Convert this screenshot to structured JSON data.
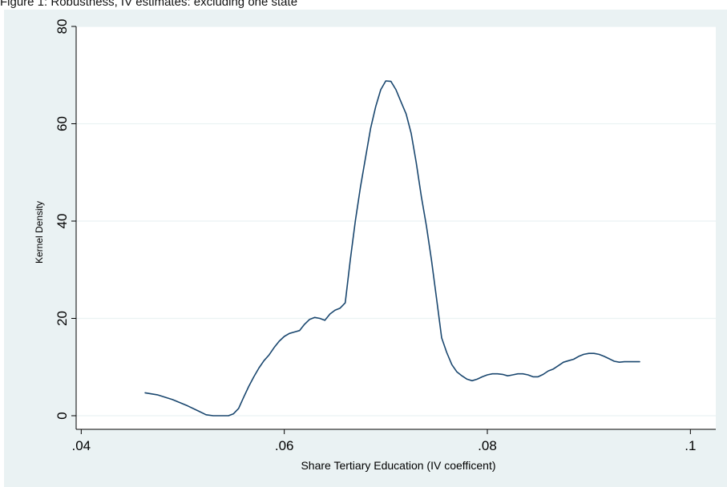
{
  "figure": {
    "caption": "Figure 1: Robustness, IV estimates: excluding one state"
  },
  "chart_data": {
    "type": "line",
    "xlabel": "Share Tertiary Education (IV coefficent)",
    "ylabel": "Kernel Density",
    "xlim": [
      0.0395,
      0.1025
    ],
    "ylim": [
      -2.8,
      80
    ],
    "xticks": [
      {
        "value": 0.04,
        "label": ".04"
      },
      {
        "value": 0.06,
        "label": ".06"
      },
      {
        "value": 0.08,
        "label": ".08"
      },
      {
        "value": 0.1,
        "label": ".1"
      }
    ],
    "yticks": [
      {
        "value": 0,
        "label": "0"
      },
      {
        "value": 20,
        "label": "20"
      },
      {
        "value": 40,
        "label": "40"
      },
      {
        "value": 60,
        "label": "60"
      },
      {
        "value": 80,
        "label": "80"
      }
    ],
    "grid": true,
    "line_color": "#1a476f",
    "background": "#eaf2f3",
    "x": [
      0.0463,
      0.0475,
      0.049,
      0.0505,
      0.0515,
      0.0523,
      0.053,
      0.0538,
      0.0545,
      0.055,
      0.0555,
      0.056,
      0.0565,
      0.057,
      0.0575,
      0.058,
      0.0585,
      0.059,
      0.0595,
      0.06,
      0.0605,
      0.061,
      0.0615,
      0.062,
      0.0625,
      0.063,
      0.0635,
      0.064,
      0.0645,
      0.065,
      0.0655,
      0.066,
      0.0665,
      0.067,
      0.0675,
      0.068,
      0.0685,
      0.069,
      0.0695,
      0.07,
      0.0705,
      0.071,
      0.0715,
      0.072,
      0.0725,
      0.073,
      0.0735,
      0.074,
      0.0745,
      0.075,
      0.0755,
      0.076,
      0.0765,
      0.077,
      0.0775,
      0.078,
      0.0785,
      0.079,
      0.0795,
      0.08,
      0.0805,
      0.081,
      0.0815,
      0.082,
      0.0825,
      0.083,
      0.0835,
      0.084,
      0.0845,
      0.085,
      0.0855,
      0.086,
      0.0865,
      0.087,
      0.0875,
      0.088,
      0.0885,
      0.089,
      0.0895,
      0.09,
      0.0905,
      0.091,
      0.0915,
      0.092,
      0.0925,
      0.093,
      0.0935,
      0.094,
      0.0945,
      0.095
    ],
    "y": [
      4.7,
      4.3,
      3.3,
      2.0,
      1.0,
      0.2,
      0.0,
      0.0,
      0.0,
      0.4,
      1.5,
      3.8,
      6.0,
      8.0,
      9.8,
      11.3,
      12.5,
      14.0,
      15.3,
      16.3,
      16.9,
      17.2,
      17.5,
      18.8,
      19.8,
      20.2,
      20.0,
      19.6,
      20.9,
      21.7,
      22.1,
      23.2,
      32.0,
      40.0,
      47.0,
      53.0,
      59.0,
      63.5,
      67.0,
      68.8,
      68.7,
      67.0,
      64.5,
      62.0,
      58.0,
      52.0,
      45.0,
      39.0,
      32.0,
      24.0,
      16.0,
      13.0,
      10.5,
      9.0,
      8.2,
      7.5,
      7.2,
      7.5,
      8.0,
      8.4,
      8.6,
      8.6,
      8.5,
      8.2,
      8.4,
      8.6,
      8.6,
      8.4,
      8.0,
      8.0,
      8.5,
      9.2,
      9.6,
      10.3,
      11.0,
      11.3,
      11.6,
      12.2,
      12.6,
      12.8,
      12.8,
      12.6,
      12.2,
      11.7,
      11.2,
      11.0,
      11.1,
      11.1,
      11.1,
      11.1
    ]
  }
}
